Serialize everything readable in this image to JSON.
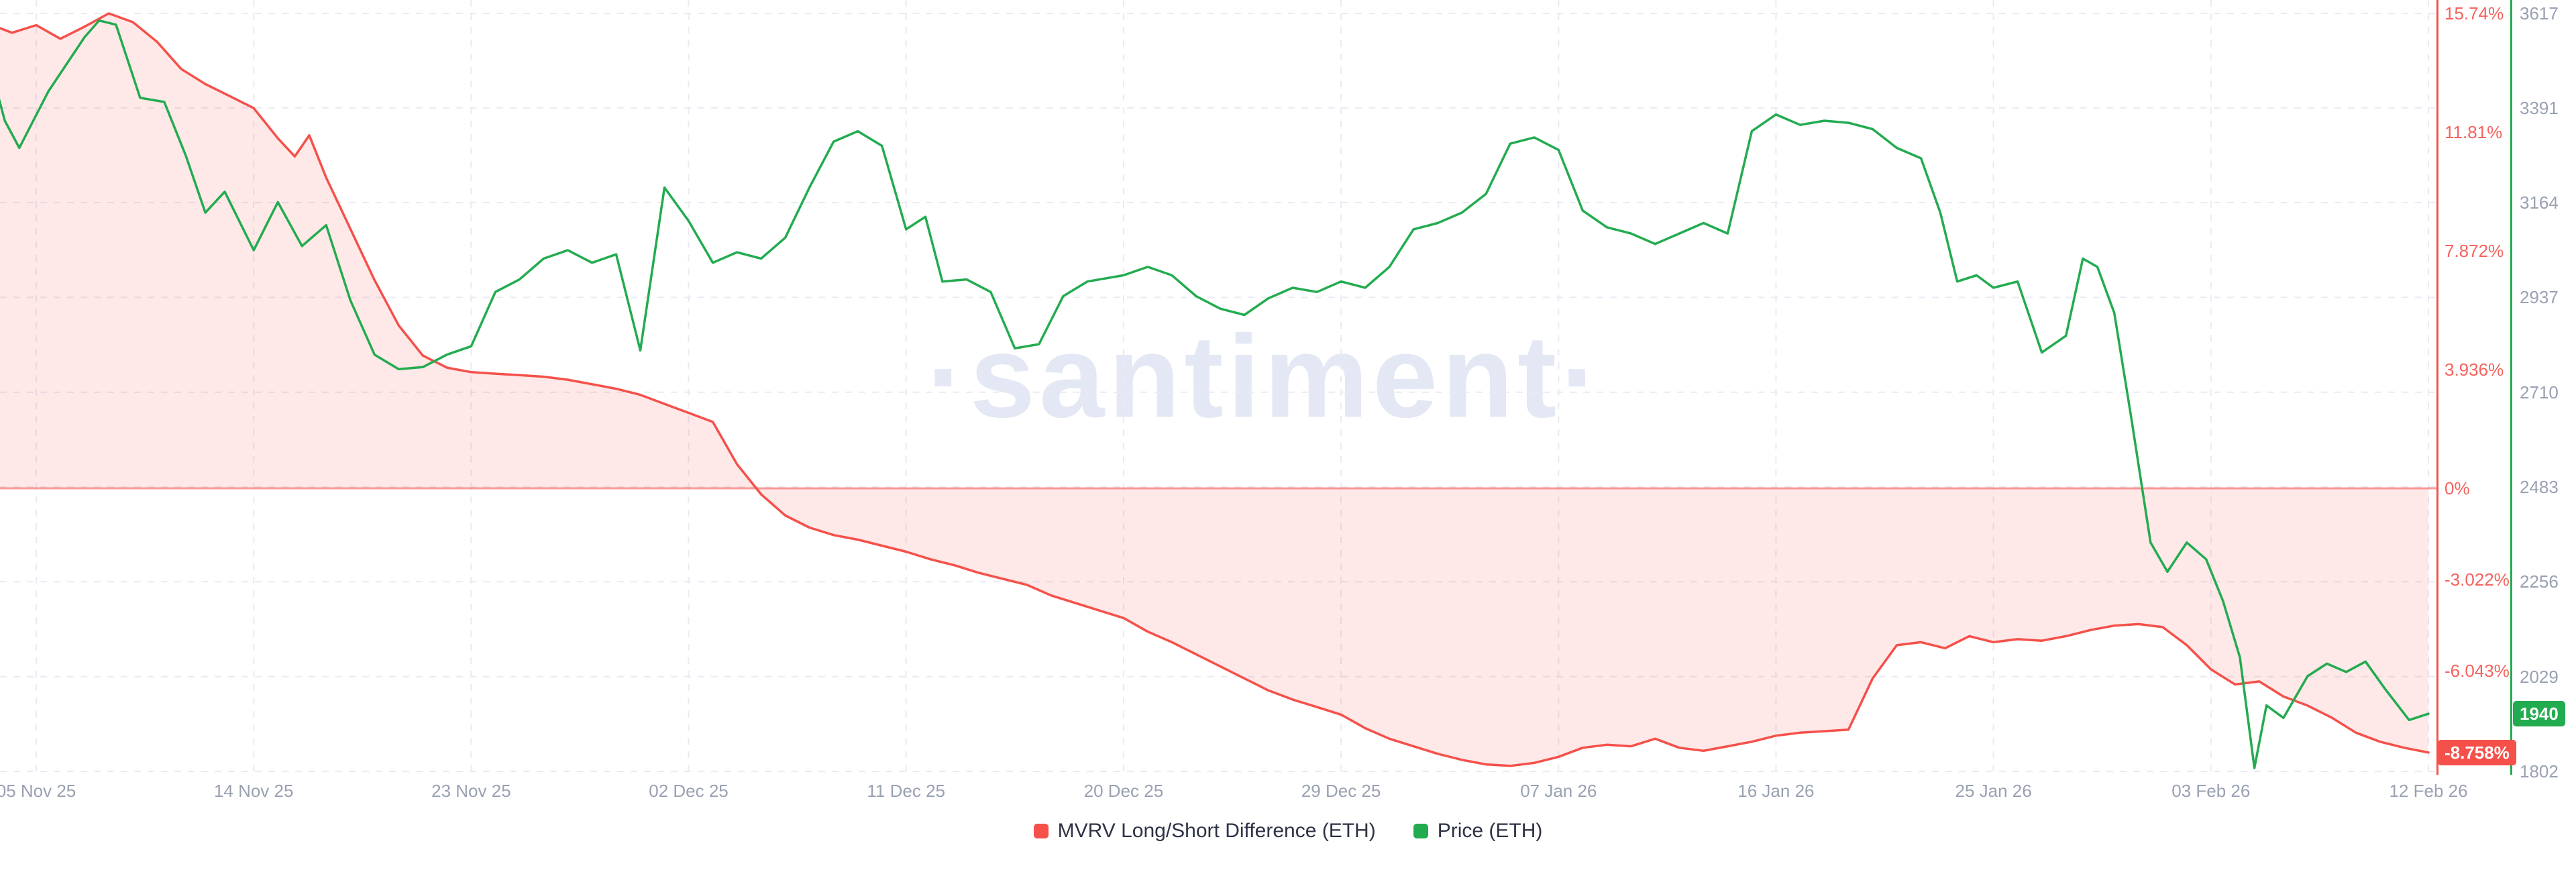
{
  "watermark": "·santiment·",
  "legend": {
    "items": [
      {
        "label": "MVRV Long/Short Difference (ETH)",
        "color": "#f5504a"
      },
      {
        "label": "Price (ETH)",
        "color": "#23ab50"
      }
    ]
  },
  "colors": {
    "red": "#f5504a",
    "green": "#23ab50",
    "pink_fill": "rgba(245,80,74,0.13)",
    "zero_line": "rgba(245,80,74,0.55)",
    "grid": "#e9ebf3",
    "percent_text": "#f4635e",
    "price_text": "#99a1b2",
    "date_text": "#99a1b2",
    "legend_text": "#2d3344",
    "watermark": "#e4e8f4",
    "background": "#ffffff"
  },
  "chart_data": {
    "type": "line",
    "title": "",
    "x_ticks": [
      {
        "label": "05 Nov 25",
        "day": 2
      },
      {
        "label": "14 Nov 25",
        "day": 11
      },
      {
        "label": "23 Nov 25",
        "day": 20
      },
      {
        "label": "02 Dec 25",
        "day": 29
      },
      {
        "label": "11 Dec 25",
        "day": 38
      },
      {
        "label": "20 Dec 25",
        "day": 47
      },
      {
        "label": "29 Dec 25",
        "day": 56
      },
      {
        "label": "07 Jan 26",
        "day": 65
      },
      {
        "label": "16 Jan 26",
        "day": 74
      },
      {
        "label": "25 Jan 26",
        "day": 83
      },
      {
        "label": "03 Feb 26",
        "day": 92
      },
      {
        "label": "12 Feb 26",
        "day": 101
      }
    ],
    "percent_axis": {
      "ticks": [
        {
          "label": "15.74%",
          "value": 15.74
        },
        {
          "label": "11.81%",
          "value": 11.81
        },
        {
          "label": "7.872%",
          "value": 7.872
        },
        {
          "label": "3.936%",
          "value": 3.936
        },
        {
          "label": "0%",
          "value": 0
        },
        {
          "label": "-3.022%",
          "value": -3.022
        },
        {
          "label": "-6.043%",
          "value": -6.043
        }
      ],
      "current": {
        "label": "-8.758%",
        "value": -8.758
      }
    },
    "price_axis": {
      "ticks": [
        {
          "label": "3617",
          "value": 3617
        },
        {
          "label": "3391",
          "value": 3391
        },
        {
          "label": "3164",
          "value": 3164
        },
        {
          "label": "2937",
          "value": 2937
        },
        {
          "label": "2710",
          "value": 2710
        },
        {
          "label": "2483",
          "value": 2483
        },
        {
          "label": "2256",
          "value": 2256
        },
        {
          "label": "2029",
          "value": 2029
        },
        {
          "label": "1802",
          "value": 1802
        }
      ],
      "current": {
        "label": "1940",
        "value": 1940
      }
    },
    "series": [
      {
        "name": "MVRV Long/Short Difference (ETH)",
        "axis": "percent",
        "color": "#f5504a",
        "baseline_fill": true,
        "points": [
          [
            0,
            15.4
          ],
          [
            1,
            15.1
          ],
          [
            2,
            15.35
          ],
          [
            3,
            14.9
          ],
          [
            4,
            15.3
          ],
          [
            5,
            15.74
          ],
          [
            6,
            15.45
          ],
          [
            7,
            14.8
          ],
          [
            8,
            13.9
          ],
          [
            9,
            13.4
          ],
          [
            10,
            13.0
          ],
          [
            11,
            12.6
          ],
          [
            12,
            11.6
          ],
          [
            12.7,
            11.0
          ],
          [
            13.3,
            11.7
          ],
          [
            14,
            10.3
          ],
          [
            15,
            8.6
          ],
          [
            16,
            6.9
          ],
          [
            17,
            5.4
          ],
          [
            18,
            4.4
          ],
          [
            19,
            4.0
          ],
          [
            20,
            3.85
          ],
          [
            21,
            3.8
          ],
          [
            22,
            3.75
          ],
          [
            23,
            3.7
          ],
          [
            24,
            3.6
          ],
          [
            25,
            3.45
          ],
          [
            26,
            3.3
          ],
          [
            27,
            3.1
          ],
          [
            28,
            2.8
          ],
          [
            29,
            2.5
          ],
          [
            30,
            2.2
          ],
          [
            31,
            0.8
          ],
          [
            32,
            -0.2
          ],
          [
            33,
            -0.9
          ],
          [
            34,
            -1.3
          ],
          [
            35,
            -1.55
          ],
          [
            36,
            -1.7
          ],
          [
            37,
            -1.9
          ],
          [
            38,
            -2.1
          ],
          [
            39,
            -2.35
          ],
          [
            40,
            -2.55
          ],
          [
            41,
            -2.8
          ],
          [
            42,
            -3.0
          ],
          [
            43,
            -3.2
          ],
          [
            44,
            -3.55
          ],
          [
            45,
            -3.8
          ],
          [
            46,
            -4.05
          ],
          [
            47,
            -4.3
          ],
          [
            48,
            -4.75
          ],
          [
            49,
            -5.1
          ],
          [
            50,
            -5.5
          ],
          [
            51,
            -5.9
          ],
          [
            52,
            -6.3
          ],
          [
            53,
            -6.7
          ],
          [
            54,
            -7.0
          ],
          [
            55,
            -7.25
          ],
          [
            56,
            -7.5
          ],
          [
            57,
            -7.95
          ],
          [
            58,
            -8.3
          ],
          [
            59,
            -8.55
          ],
          [
            60,
            -8.8
          ],
          [
            61,
            -9.0
          ],
          [
            62,
            -9.15
          ],
          [
            63,
            -9.2
          ],
          [
            64,
            -9.1
          ],
          [
            65,
            -8.9
          ],
          [
            66,
            -8.6
          ],
          [
            67,
            -8.5
          ],
          [
            68,
            -8.55
          ],
          [
            69,
            -8.3
          ],
          [
            70,
            -8.6
          ],
          [
            71,
            -8.7
          ],
          [
            72,
            -8.55
          ],
          [
            73,
            -8.4
          ],
          [
            74,
            -8.2
          ],
          [
            75,
            -8.1
          ],
          [
            76,
            -8.05
          ],
          [
            77,
            -8.0
          ],
          [
            78,
            -6.3
          ],
          [
            79,
            -5.2
          ],
          [
            80,
            -5.1
          ],
          [
            81,
            -5.3
          ],
          [
            82,
            -4.9
          ],
          [
            83,
            -5.1
          ],
          [
            84,
            -5.0
          ],
          [
            85,
            -5.05
          ],
          [
            86,
            -4.9
          ],
          [
            87,
            -4.7
          ],
          [
            88,
            -4.55
          ],
          [
            89,
            -4.5
          ],
          [
            90,
            -4.6
          ],
          [
            91,
            -5.2
          ],
          [
            92,
            -6.0
          ],
          [
            93,
            -6.5
          ],
          [
            94,
            -6.4
          ],
          [
            95,
            -6.9
          ],
          [
            96,
            -7.2
          ],
          [
            97,
            -7.6
          ],
          [
            98,
            -8.1
          ],
          [
            99,
            -8.4
          ],
          [
            100,
            -8.6
          ],
          [
            101,
            -8.758
          ]
        ]
      },
      {
        "name": "Price (ETH)",
        "axis": "price",
        "color": "#23ab50",
        "points": [
          [
            0,
            3510
          ],
          [
            0.7,
            3360
          ],
          [
            1.3,
            3295
          ],
          [
            2.5,
            3430
          ],
          [
            4,
            3560
          ],
          [
            4.6,
            3600
          ],
          [
            5.3,
            3590
          ],
          [
            6.3,
            3415
          ],
          [
            7.3,
            3405
          ],
          [
            8.2,
            3275
          ],
          [
            9,
            3140
          ],
          [
            9.8,
            3190
          ],
          [
            11,
            3050
          ],
          [
            12,
            3165
          ],
          [
            13,
            3060
          ],
          [
            14,
            3110
          ],
          [
            15,
            2930
          ],
          [
            16,
            2800
          ],
          [
            17,
            2765
          ],
          [
            18,
            2770
          ],
          [
            19,
            2800
          ],
          [
            20,
            2820
          ],
          [
            21,
            2950
          ],
          [
            22,
            2980
          ],
          [
            23,
            3030
          ],
          [
            24,
            3050
          ],
          [
            25,
            3020
          ],
          [
            26,
            3040
          ],
          [
            27,
            2810
          ],
          [
            28,
            3200
          ],
          [
            29,
            3120
          ],
          [
            30,
            3020
          ],
          [
            31,
            3045
          ],
          [
            32,
            3030
          ],
          [
            33,
            3080
          ],
          [
            34,
            3200
          ],
          [
            35,
            3310
          ],
          [
            36,
            3335
          ],
          [
            37,
            3300
          ],
          [
            38,
            3100
          ],
          [
            38.8,
            3130
          ],
          [
            39.5,
            2975
          ],
          [
            40.5,
            2980
          ],
          [
            41.5,
            2950
          ],
          [
            42.5,
            2815
          ],
          [
            43.5,
            2825
          ],
          [
            44.5,
            2940
          ],
          [
            45.5,
            2975
          ],
          [
            47,
            2990
          ],
          [
            48,
            3010
          ],
          [
            49,
            2990
          ],
          [
            50,
            2940
          ],
          [
            51,
            2910
          ],
          [
            52,
            2895
          ],
          [
            53,
            2935
          ],
          [
            54,
            2960
          ],
          [
            55,
            2950
          ],
          [
            56,
            2975
          ],
          [
            57,
            2960
          ],
          [
            58,
            3010
          ],
          [
            59,
            3100
          ],
          [
            60,
            3115
          ],
          [
            61,
            3140
          ],
          [
            62,
            3185
          ],
          [
            63,
            3305
          ],
          [
            64,
            3320
          ],
          [
            65,
            3290
          ],
          [
            66,
            3145
          ],
          [
            67,
            3105
          ],
          [
            68,
            3090
          ],
          [
            69,
            3065
          ],
          [
            70,
            3090
          ],
          [
            71,
            3115
          ],
          [
            72,
            3090
          ],
          [
            73,
            3335
          ],
          [
            74,
            3375
          ],
          [
            75,
            3350
          ],
          [
            76,
            3360
          ],
          [
            77,
            3355
          ],
          [
            78,
            3340
          ],
          [
            79,
            3295
          ],
          [
            80,
            3270
          ],
          [
            80.8,
            3140
          ],
          [
            81.5,
            2975
          ],
          [
            82.3,
            2990
          ],
          [
            83,
            2960
          ],
          [
            84,
            2975
          ],
          [
            85,
            2805
          ],
          [
            86,
            2845
          ],
          [
            86.7,
            3030
          ],
          [
            87.3,
            3010
          ],
          [
            88,
            2900
          ],
          [
            88.7,
            2650
          ],
          [
            89.5,
            2350
          ],
          [
            90.2,
            2280
          ],
          [
            91,
            2350
          ],
          [
            91.8,
            2310
          ],
          [
            92.5,
            2210
          ],
          [
            93.2,
            2075
          ],
          [
            93.8,
            1810
          ],
          [
            94.3,
            1960
          ],
          [
            95,
            1930
          ],
          [
            96,
            2030
          ],
          [
            96.8,
            2060
          ],
          [
            97.6,
            2040
          ],
          [
            98.4,
            2065
          ],
          [
            99.2,
            2000
          ],
          [
            100.2,
            1925
          ],
          [
            101,
            1940
          ]
        ]
      }
    ]
  }
}
